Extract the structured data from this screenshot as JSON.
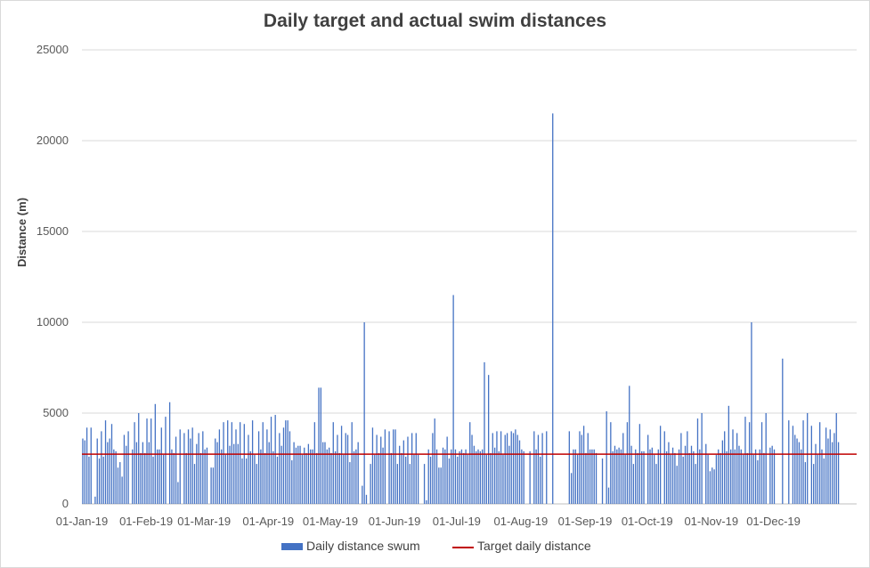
{
  "chart_data": {
    "type": "bar",
    "title": "Daily target and actual swim distances",
    "ylabel": "Distance (m)",
    "xlabel": "",
    "ylim": [
      0,
      25000
    ],
    "yticks": [
      0,
      5000,
      10000,
      15000,
      20000,
      25000
    ],
    "grid": true,
    "legend_position": "bottom",
    "x_start": "2019-01-01",
    "x_ticks": [
      {
        "label": "01-Jan-19",
        "date": "2019-01-01"
      },
      {
        "label": "01-Feb-19",
        "date": "2019-02-01"
      },
      {
        "label": "01-Mar-19",
        "date": "2019-03-01"
      },
      {
        "label": "01-Apr-19",
        "date": "2019-04-01"
      },
      {
        "label": "01-May-19",
        "date": "2019-05-01"
      },
      {
        "label": "01-Jun-19",
        "date": "2019-06-01"
      },
      {
        "label": "01-Jul-19",
        "date": "2019-07-01"
      },
      {
        "label": "01-Aug-19",
        "date": "2019-08-01"
      },
      {
        "label": "01-Sep-19",
        "date": "2019-09-01"
      },
      {
        "label": "01-Oct-19",
        "date": "2019-10-01"
      },
      {
        "label": "01-Nov-19",
        "date": "2019-11-01"
      },
      {
        "label": "01-Dec-19",
        "date": "2019-12-01"
      }
    ],
    "series": [
      {
        "name": "Daily distance swum",
        "kind": "bar",
        "color": "#4472c4",
        "values": [
          3600,
          3500,
          4200,
          2600,
          4200,
          0,
          400,
          3600,
          2500,
          4000,
          2600,
          4600,
          3400,
          3600,
          4400,
          3000,
          2900,
          2000,
          2300,
          1500,
          3800,
          3200,
          4000,
          0,
          3000,
          4500,
          3400,
          5000,
          2800,
          3400,
          2800,
          4700,
          3400,
          4700,
          2600,
          5500,
          3000,
          3000,
          4200,
          2700,
          4800,
          0,
          5600,
          3000,
          2800,
          3700,
          1200,
          4100,
          0,
          3900,
          2800,
          4100,
          3600,
          4200,
          2200,
          3300,
          3900,
          2800,
          4000,
          3000,
          3100,
          0,
          2000,
          2000,
          3600,
          3400,
          4100,
          3000,
          4500,
          2700,
          4600,
          3200,
          4500,
          3300,
          4100,
          3300,
          4500,
          2500,
          4400,
          2500,
          3800,
          2900,
          4600,
          2700,
          2200,
          4000,
          3000,
          4500,
          2800,
          4100,
          3400,
          4800,
          2900,
          4900,
          2600,
          3900,
          3200,
          4200,
          4600,
          4600,
          4000,
          2400,
          3400,
          3100,
          3200,
          3200,
          2700,
          3100,
          2800,
          3300,
          3000,
          3000,
          4500,
          2800,
          6400,
          6400,
          3400,
          3400,
          3000,
          3100,
          2800,
          4500,
          2900,
          3800,
          2800,
          4300,
          2700,
          3900,
          3800,
          2300,
          4500,
          2900,
          3000,
          3400,
          0,
          1000,
          10000,
          500,
          0,
          2200,
          4200,
          2700,
          3800,
          2800,
          3700,
          3100,
          4100,
          0,
          4000,
          2800,
          4100,
          4100,
          2200,
          3200,
          2800,
          3500,
          2600,
          3700,
          2200,
          3900,
          2700,
          3900,
          2700,
          0,
          0,
          2200,
          200,
          3000,
          2600,
          3900,
          4700,
          3000,
          2000,
          2000,
          3100,
          3000,
          3700,
          2500,
          3000,
          11500,
          3000,
          2600,
          2900,
          3000,
          2800,
          3000,
          2700,
          4500,
          3800,
          3200,
          2900,
          3000,
          2900,
          3000,
          7800,
          2700,
          7100,
          2800,
          3900,
          3100,
          4000,
          2900,
          4000,
          2700,
          3800,
          3900,
          3200,
          4000,
          3900,
          4100,
          3800,
          3500,
          3000,
          2900,
          0,
          0,
          2900,
          0,
          4000,
          3000,
          3800,
          2600,
          3900,
          0,
          4000,
          0,
          0,
          21500,
          0,
          0,
          0,
          0,
          0,
          0,
          0,
          4000,
          1700,
          3000,
          3000,
          2700,
          4000,
          3800,
          4300,
          2800,
          3900,
          3000,
          3000,
          3000,
          2800,
          0,
          0,
          2500,
          0,
          5100,
          900,
          4500,
          2900,
          3200,
          3000,
          3100,
          3000,
          3900,
          2700,
          4500,
          6500,
          3200,
          2200,
          3000,
          2800,
          4400,
          2900,
          2900,
          0,
          3800,
          3000,
          3100,
          2700,
          2200,
          3000,
          4300,
          0,
          4000,
          2900,
          3400,
          2700,
          3100,
          2800,
          2100,
          3000,
          3900,
          2600,
          3200,
          4000,
          2800,
          3200,
          2900,
          2200,
          4700,
          3000,
          5000,
          0,
          3300,
          2700,
          1800,
          2000,
          1900,
          2700,
          3000,
          2800,
          3500,
          4000,
          2900,
          5400,
          3000,
          4100,
          3000,
          3900,
          3200,
          3000,
          2700,
          4800,
          2800,
          4500,
          10000,
          2700,
          3000,
          2400,
          3000,
          4500,
          2800,
          5000,
          0,
          3100,
          3200,
          3000,
          0,
          0,
          0,
          8000,
          0,
          0,
          4600,
          0,
          4300,
          3800,
          3600,
          3400,
          3000,
          4600,
          2300,
          5000,
          0,
          4300,
          2200,
          3300,
          2700,
          4500,
          3000,
          2500,
          4200,
          3600,
          4100,
          3400,
          3900,
          5000,
          3400
        ]
      },
      {
        "name": "Target daily distance",
        "kind": "line",
        "color": "#c00000",
        "value": 2740
      }
    ]
  },
  "legend": {
    "series_bar_label": "Daily distance swum",
    "series_line_label": "Target daily distance"
  }
}
